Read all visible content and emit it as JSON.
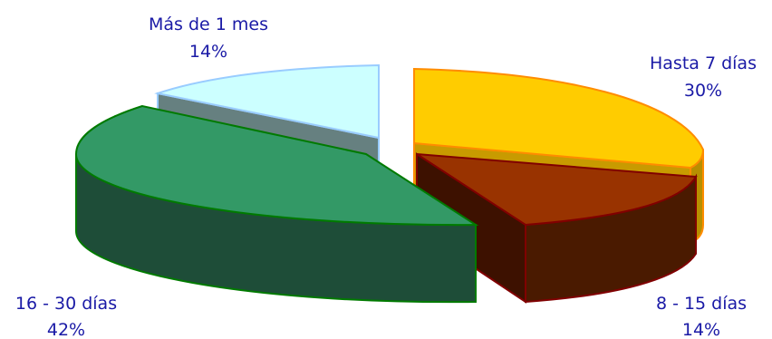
{
  "chart_data": {
    "type": "pie",
    "style": "3d-exploded",
    "legend": "none",
    "slices": [
      {
        "label": "Hasta 7 días",
        "percent_label": "30%",
        "value": 30,
        "color": "#ffcc00"
      },
      {
        "label": "8 - 15 días",
        "percent_label": "14%",
        "value": 14,
        "color": "#993300"
      },
      {
        "label": "16 - 30 días",
        "percent_label": "42%",
        "value": 42,
        "color": "#339966"
      },
      {
        "label": "Más de 1 mes",
        "percent_label": "14%",
        "value": 14,
        "color": "#ccffff"
      }
    ]
  }
}
